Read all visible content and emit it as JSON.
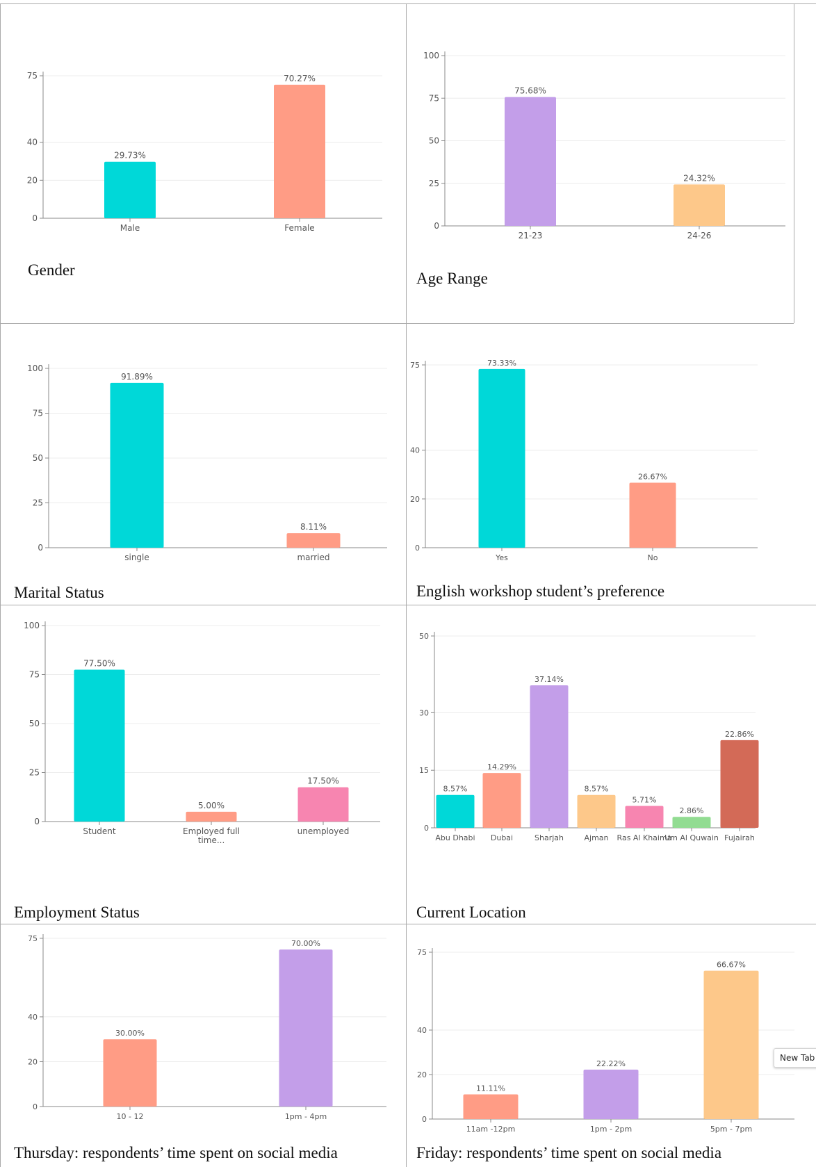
{
  "tooltip_text": "New Tab",
  "chart_data": [
    {
      "type": "bar",
      "title": "Gender",
      "categories": [
        "Male",
        "Female"
      ],
      "values": [
        29.73,
        70.27
      ],
      "value_labels": [
        "29.73%",
        "70.27%"
      ],
      "colors": [
        "#00d8d8",
        "#ff9c85"
      ],
      "yticks": [
        0,
        20,
        40,
        75
      ],
      "ylim": [
        0,
        75
      ]
    },
    {
      "type": "bar",
      "title": "Age Range",
      "categories": [
        "21-23",
        "24-26"
      ],
      "values": [
        75.68,
        24.32
      ],
      "value_labels": [
        "75.68%",
        "24.32%"
      ],
      "colors": [
        "#c39ee9",
        "#fdc88a"
      ],
      "yticks": [
        0,
        25,
        50,
        75,
        100
      ],
      "ylim": [
        0,
        100
      ]
    },
    {
      "type": "bar",
      "title": "Marital Status",
      "categories": [
        "single",
        "married"
      ],
      "values": [
        91.89,
        8.11
      ],
      "value_labels": [
        "91.89%",
        "8.11%"
      ],
      "colors": [
        "#00d8d8",
        "#ff9c85"
      ],
      "yticks": [
        0,
        25,
        50,
        75,
        100
      ],
      "ylim": [
        0,
        100
      ]
    },
    {
      "type": "bar",
      "title": "English workshop student’s preference",
      "categories": [
        "Yes",
        "No"
      ],
      "values": [
        73.33,
        26.67
      ],
      "value_labels": [
        "73.33%",
        "26.67%"
      ],
      "colors": [
        "#00d8d8",
        "#ff9c85"
      ],
      "yticks": [
        0,
        20,
        40,
        75
      ],
      "ylim": [
        0,
        75
      ]
    },
    {
      "type": "bar",
      "title": "Employment Status",
      "categories": [
        "Student",
        "Employed full time...",
        "unemployed"
      ],
      "values": [
        77.5,
        5.0,
        17.5
      ],
      "value_labels": [
        "77.50%",
        "5.00%",
        "17.50%"
      ],
      "colors": [
        "#00d8d8",
        "#ff9c85",
        "#f785b0"
      ],
      "yticks": [
        0,
        25,
        50,
        75,
        100
      ],
      "ylim": [
        0,
        100
      ]
    },
    {
      "type": "bar",
      "title": "Current Location",
      "categories": [
        "Abu Dhabi",
        "Dubai",
        "Sharjah",
        "Ajman",
        "Ras Al Khaima",
        "Um Al Quwain",
        "Fujairah"
      ],
      "values": [
        8.57,
        14.29,
        37.14,
        8.57,
        5.71,
        2.86,
        22.86
      ],
      "value_labels": [
        "8.57%",
        "14.29%",
        "37.14%",
        "8.57%",
        "5.71%",
        "2.86%",
        "22.86%"
      ],
      "colors": [
        "#00d8d8",
        "#ff9c85",
        "#c39ee9",
        "#fdc88a",
        "#f785b0",
        "#92dc92",
        "#d36a57"
      ],
      "yticks": [
        0,
        15,
        30,
        50
      ],
      "ylim": [
        0,
        50
      ]
    },
    {
      "type": "bar",
      "title": "Thursday: respondents’ time spent on social media",
      "categories": [
        "10 - 12",
        "1pm - 4pm"
      ],
      "values": [
        30.0,
        70.0
      ],
      "value_labels": [
        "30.00%",
        "70.00%"
      ],
      "colors": [
        "#ff9c85",
        "#c39ee9"
      ],
      "yticks": [
        0,
        20,
        40,
        75
      ],
      "ylim": [
        0,
        75
      ]
    },
    {
      "type": "bar",
      "title": "Friday: respondents’ time spent on social media",
      "categories": [
        "11am -12pm",
        "1pm - 2pm",
        "5pm - 7pm"
      ],
      "values": [
        11.11,
        22.22,
        66.67
      ],
      "value_labels": [
        "11.11%",
        "22.22%",
        "66.67%"
      ],
      "colors": [
        "#ff9c85",
        "#c39ee9",
        "#fdc88a"
      ],
      "yticks": [
        0,
        20,
        40,
        75
      ],
      "ylim": [
        0,
        75
      ]
    }
  ]
}
